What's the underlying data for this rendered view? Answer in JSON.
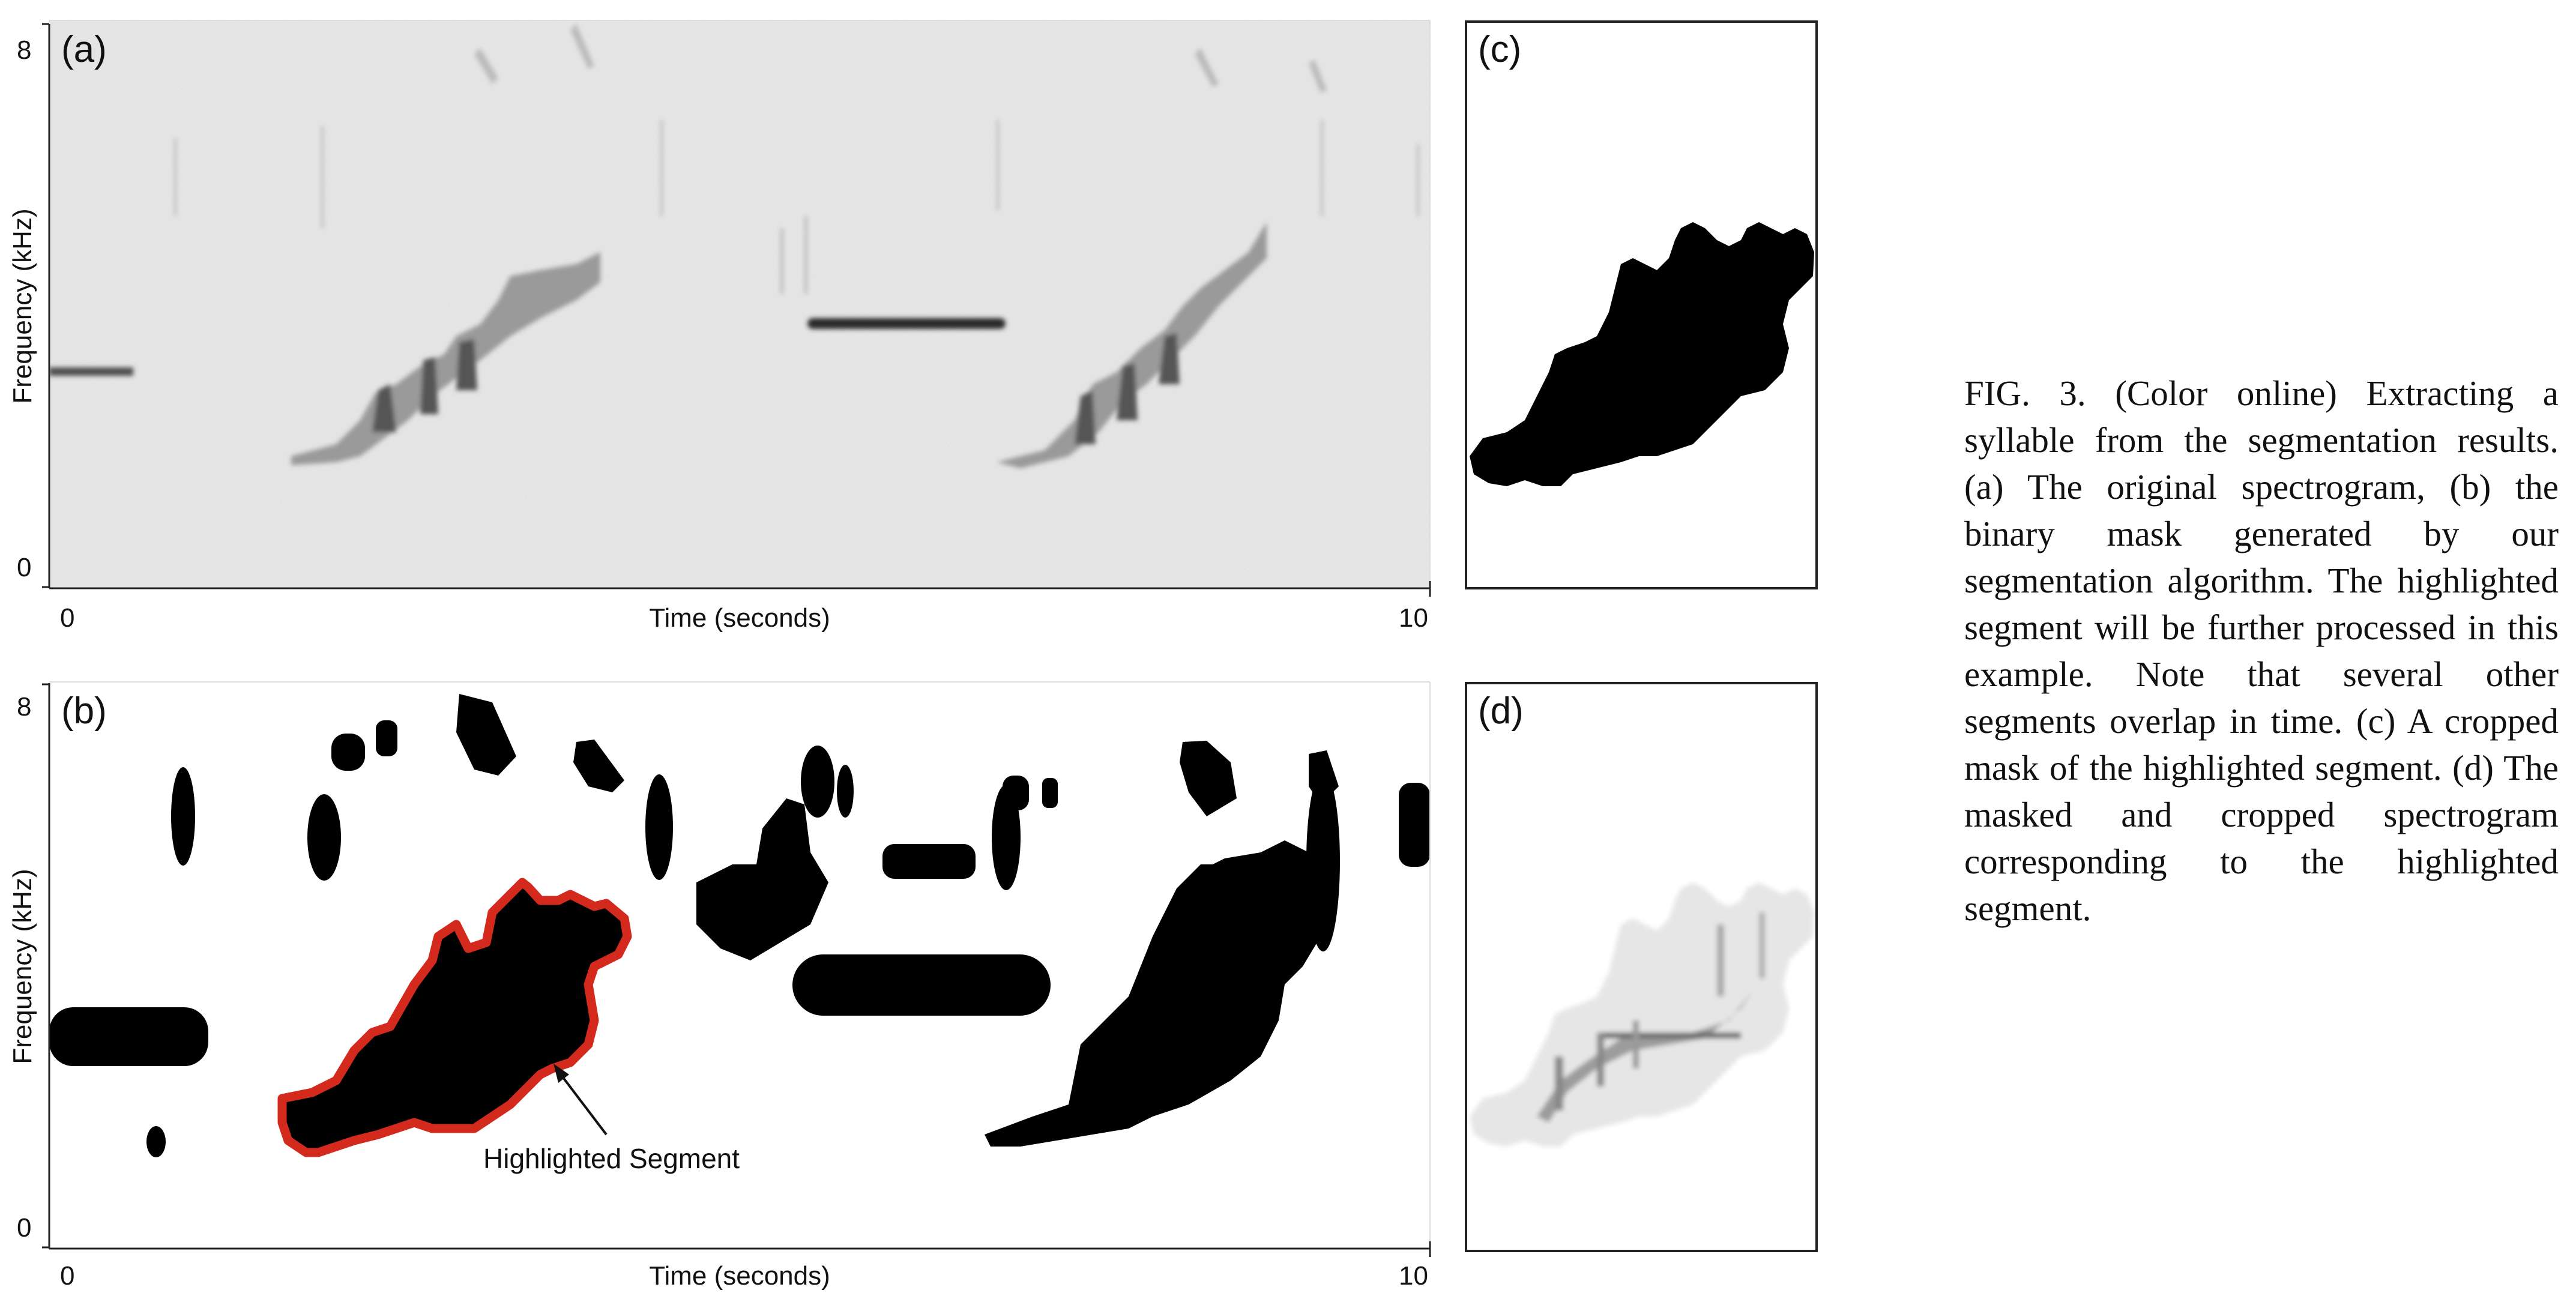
{
  "panels": {
    "a": {
      "label": "(a)",
      "xlabel": "Time (seconds)",
      "ylabel": "Frequency (kHz)",
      "x_ticks": [
        "0",
        "10"
      ],
      "y_ticks": [
        "8",
        "0"
      ]
    },
    "b": {
      "label": "(b)",
      "xlabel": "Time (seconds)",
      "ylabel": "Frequency (kHz)",
      "x_ticks": [
        "0",
        "10"
      ],
      "y_ticks": [
        "8",
        "0"
      ],
      "annotation": "Highlighted Segment"
    },
    "c": {
      "label": "(c)"
    },
    "d": {
      "label": "(d)"
    }
  },
  "caption": "FIG. 3. (Color online) Extracting a syllable from the segmentation results. (a) The original spectrogram, (b) the binary mask generated by our segmentation algorithm. The highlighted segment will be further processed in this example. Note that several other segments overlap in time. (c) A cropped mask of the highlighted segment. (d) The masked and cropped spectrogram corresponding to the highlighted segment.",
  "colors": {
    "highlight": "#d42a1e",
    "mask": "#000000",
    "spectrogram_bg": "#eeeeee"
  }
}
